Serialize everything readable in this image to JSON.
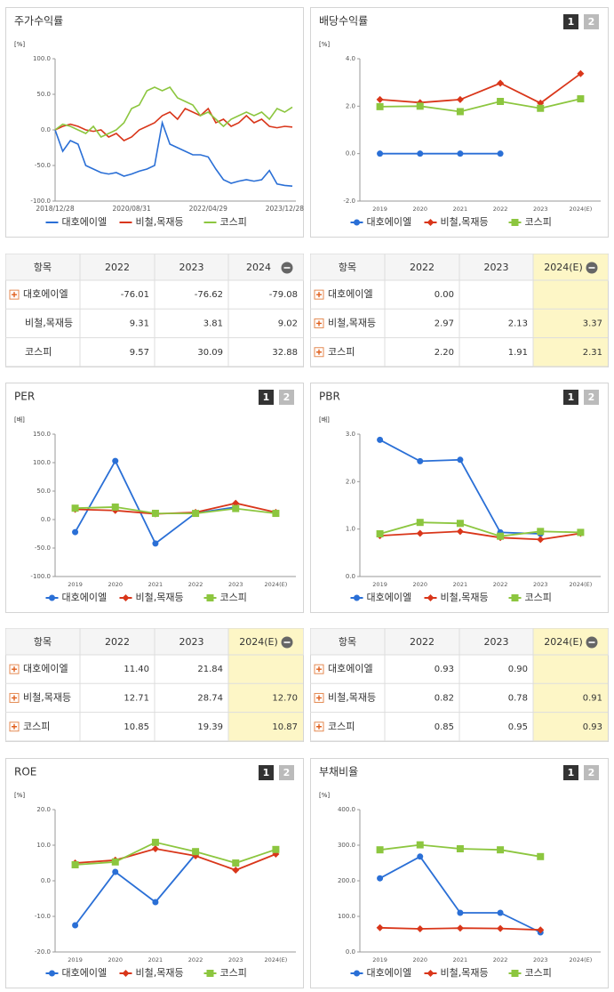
{
  "chart_data": [
    {
      "type": "line",
      "title": "주가수익률",
      "unit_label": "[%]",
      "categories": [
        "2018/12/28",
        null,
        null,
        null,
        null,
        null,
        null,
        null,
        null,
        null,
        "2020/08/31",
        null,
        null,
        null,
        null,
        null,
        null,
        null,
        null,
        null,
        "2022/04/29",
        null,
        null,
        null,
        null,
        null,
        null,
        null,
        null,
        null,
        "2023/12/28",
        null
      ],
      "series": [
        {
          "name": "대호에이엘",
          "color": "#2a6fd6",
          "marker": "none",
          "values": [
            0,
            -30,
            -15,
            -20,
            -50,
            -55,
            -60,
            -62,
            -60,
            -65,
            -62,
            -58,
            -55,
            -50,
            10,
            -20,
            -25,
            -30,
            -35,
            -35,
            -38,
            -55,
            -70,
            -75,
            -72,
            -70,
            -72,
            -70,
            -57,
            -76,
            -78,
            -79
          ]
        },
        {
          "name": "비철,목재등",
          "color": "#d9361a",
          "marker": "none",
          "values": [
            0,
            5,
            8,
            5,
            0,
            -2,
            0,
            -10,
            -5,
            -15,
            -10,
            0,
            5,
            10,
            20,
            25,
            15,
            30,
            25,
            20,
            30,
            10,
            15,
            5,
            10,
            20,
            10,
            15,
            5,
            3,
            5,
            4
          ]
        },
        {
          "name": "코스피",
          "color": "#8cc63f",
          "marker": "none",
          "values": [
            0,
            8,
            5,
            0,
            -5,
            5,
            -10,
            -5,
            0,
            10,
            30,
            35,
            55,
            60,
            55,
            60,
            45,
            40,
            35,
            20,
            25,
            15,
            5,
            15,
            20,
            25,
            20,
            25,
            15,
            30,
            25,
            32
          ]
        }
      ],
      "ylim": [
        -100,
        100
      ],
      "yticks": [
        {
          "value": 100,
          "label": "100.0"
        },
        {
          "value": 50,
          "label": "50.0"
        },
        {
          "value": 0,
          "label": "0.0"
        },
        {
          "value": -50,
          "label": "-50.0"
        },
        {
          "value": -100,
          "label": "-100.0"
        }
      ]
    },
    {
      "type": "line",
      "title": "배당수익률",
      "buttons": [
        "1",
        "2"
      ],
      "unit_label": "[%]",
      "categories": [
        "2019",
        "2020",
        "2021",
        "2022",
        "2023",
        "2024(E)"
      ],
      "series": [
        {
          "name": "대호에이엘",
          "color": "#2a6fd6",
          "marker": "circle",
          "values": [
            0,
            0,
            0,
            0,
            null,
            null
          ]
        },
        {
          "name": "비철,목재등",
          "color": "#d9361a",
          "marker": "diamond",
          "values": [
            2.28,
            2.15,
            2.28,
            2.97,
            2.13,
            3.37
          ]
        },
        {
          "name": "코스피",
          "color": "#8cc63f",
          "marker": "square",
          "values": [
            1.98,
            2.0,
            1.77,
            2.2,
            1.91,
            2.31
          ]
        }
      ],
      "ylim": [
        -2,
        4
      ],
      "yticks": [
        {
          "value": 4,
          "label": "4.0"
        },
        {
          "value": 2,
          "label": "2.0"
        },
        {
          "value": 0,
          "label": "0.0"
        },
        {
          "value": -2,
          "label": "-2.0"
        }
      ]
    },
    {
      "type": "line",
      "title": "PER",
      "buttons": [
        "1",
        "2"
      ],
      "unit_label": "[배]",
      "categories": [
        "2019",
        "2020",
        "2021",
        "2022",
        "2023",
        "2024(E)"
      ],
      "series": [
        {
          "name": "대호에이엘",
          "color": "#2a6fd6",
          "marker": "circle",
          "values": [
            -22,
            103,
            -42,
            11.4,
            21.84,
            null
          ]
        },
        {
          "name": "비철,목재등",
          "color": "#d9361a",
          "marker": "diamond",
          "values": [
            18,
            16,
            10,
            12.71,
            28.74,
            12.7
          ]
        },
        {
          "name": "코스피",
          "color": "#8cc63f",
          "marker": "square",
          "values": [
            20,
            22,
            11,
            10.85,
            19.39,
            10.87
          ]
        }
      ],
      "ylim": [
        -100,
        150
      ],
      "yticks": [
        {
          "value": 150,
          "label": "150.0"
        },
        {
          "value": 100,
          "label": "100.0"
        },
        {
          "value": 50,
          "label": "50.0"
        },
        {
          "value": 0,
          "label": "0.0"
        },
        {
          "value": -50,
          "label": "-50.0"
        },
        {
          "value": -100,
          "label": "-100.0"
        }
      ]
    },
    {
      "type": "line",
      "title": "PBR",
      "buttons": [
        "1",
        "2"
      ],
      "unit_label": "[배]",
      "categories": [
        "2019",
        "2020",
        "2021",
        "2022",
        "2023",
        "2024(E)"
      ],
      "series": [
        {
          "name": "대호에이엘",
          "color": "#2a6fd6",
          "marker": "circle",
          "values": [
            2.88,
            2.43,
            2.46,
            0.93,
            0.9,
            null
          ]
        },
        {
          "name": "비철,목재등",
          "color": "#d9361a",
          "marker": "diamond",
          "values": [
            0.86,
            0.91,
            0.95,
            0.82,
            0.78,
            0.91
          ]
        },
        {
          "name": "코스피",
          "color": "#8cc63f",
          "marker": "square",
          "values": [
            0.9,
            1.14,
            1.12,
            0.85,
            0.95,
            0.93
          ]
        }
      ],
      "ylim": [
        0,
        3
      ],
      "yticks": [
        {
          "value": 3,
          "label": "3.0"
        },
        {
          "value": 2,
          "label": "2.0"
        },
        {
          "value": 1,
          "label": "1.0"
        },
        {
          "value": 0,
          "label": "0.0"
        }
      ]
    },
    {
      "type": "line",
      "title": "ROE",
      "buttons": [
        "1",
        "2"
      ],
      "unit_label": "[%]",
      "categories": [
        "2019",
        "2020",
        "2021",
        "2022",
        "2023",
        "2024(E)"
      ],
      "series": [
        {
          "name": "대호에이엘",
          "color": "#2a6fd6",
          "marker": "circle",
          "values": [
            -12.5,
            2.5,
            -6,
            7.5,
            null,
            null
          ]
        },
        {
          "name": "비철,목재등",
          "color": "#d9361a",
          "marker": "diamond",
          "values": [
            5,
            5.8,
            9,
            7,
            3,
            7.5
          ]
        },
        {
          "name": "코스피",
          "color": "#8cc63f",
          "marker": "square",
          "values": [
            4.5,
            5.3,
            10.8,
            8.2,
            5,
            8.8
          ]
        }
      ],
      "ylim": [
        -20,
        20
      ],
      "yticks": [
        {
          "value": 20,
          "label": "20.0"
        },
        {
          "value": 10,
          "label": "10.0"
        },
        {
          "value": 0,
          "label": "0.0"
        },
        {
          "value": -10,
          "label": "-10.0"
        },
        {
          "value": -20,
          "label": "-20.0"
        }
      ]
    },
    {
      "type": "line",
      "title": "부채비율",
      "buttons": [
        "1",
        "2"
      ],
      "unit_label": "[%]",
      "categories": [
        "2019",
        "2020",
        "2021",
        "2022",
        "2023",
        "2024(E)"
      ],
      "series": [
        {
          "name": "대호에이엘",
          "color": "#2a6fd6",
          "marker": "circle",
          "values": [
            207,
            268,
            110,
            110,
            55,
            null
          ]
        },
        {
          "name": "비철,목재등",
          "color": "#d9361a",
          "marker": "diamond",
          "values": [
            68,
            65,
            67,
            66,
            62,
            null
          ]
        },
        {
          "name": "코스피",
          "color": "#8cc63f",
          "marker": "square",
          "values": [
            287,
            301,
            290,
            287,
            268,
            null
          ]
        }
      ],
      "ylim": [
        0,
        400
      ],
      "yticks": [
        {
          "value": 400,
          "label": "400.0"
        },
        {
          "value": 300,
          "label": "300.0"
        },
        {
          "value": 200,
          "label": "200.0"
        },
        {
          "value": 100,
          "label": "100.0"
        },
        {
          "value": 0,
          "label": "0.0"
        }
      ]
    }
  ],
  "tables": [
    {
      "header": [
        "항목",
        "2022",
        "2023",
        "2024"
      ],
      "rows": [
        {
          "name": "대호에이엘",
          "values": [
            "-76.01",
            "-76.62",
            "-79.08"
          ]
        },
        {
          "name": "비철,목재등",
          "values": [
            "9.31",
            "3.81",
            "9.02"
          ]
        },
        {
          "name": "코스피",
          "values": [
            "9.57",
            "30.09",
            "32.88"
          ]
        }
      ]
    },
    {
      "header": [
        "항목",
        "2022",
        "2023",
        "2024(E)"
      ],
      "rows": [
        {
          "name": "대호에이엘",
          "values": [
            "0.00",
            null,
            null
          ]
        },
        {
          "name": "비철,목재등",
          "values": [
            "2.97",
            "2.13",
            "3.37"
          ]
        },
        {
          "name": "코스피",
          "values": [
            "2.20",
            "1.91",
            "2.31"
          ]
        }
      ]
    },
    {
      "header": [
        "항목",
        "2022",
        "2023",
        "2024(E)"
      ],
      "rows": [
        {
          "name": "대호에이엘",
          "values": [
            "11.40",
            "21.84",
            null
          ]
        },
        {
          "name": "비철,목재등",
          "values": [
            "12.71",
            "28.74",
            "12.70"
          ]
        },
        {
          "name": "코스피",
          "values": [
            "10.85",
            "19.39",
            "10.87"
          ]
        }
      ]
    },
    {
      "header": [
        "항목",
        "2022",
        "2023",
        "2024(E)"
      ],
      "rows": [
        {
          "name": "대호에이엘",
          "values": [
            "0.93",
            "0.90",
            null
          ]
        },
        {
          "name": "비철,목재등",
          "values": [
            "0.82",
            "0.78",
            "0.91"
          ]
        },
        {
          "name": "코스피",
          "values": [
            "0.85",
            "0.95",
            "0.93"
          ]
        }
      ]
    }
  ]
}
